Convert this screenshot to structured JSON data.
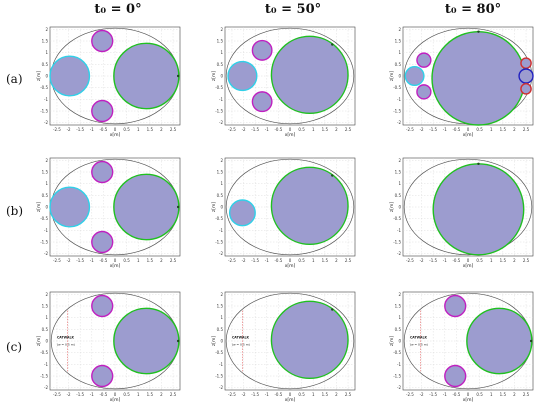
{
  "columns": [
    {
      "label": "t₀ = 0°"
    },
    {
      "label": "t₀ = 50°"
    },
    {
      "label": "t₀ = 80°"
    }
  ],
  "rows": [
    {
      "label": "(a)"
    },
    {
      "label": "(b)"
    },
    {
      "label": "(c)"
    }
  ],
  "axes": {
    "xlabel": "x[m]",
    "ylabel": "z[m]",
    "xlim": [
      -2.8,
      2.8
    ],
    "ylim": [
      -2.1,
      2.1
    ],
    "xticks": [
      "-2.5",
      "-2",
      "-1.5",
      "-1",
      "-0.5",
      "0",
      "0.5",
      "1",
      "1.5",
      "2",
      "2.5"
    ],
    "xtick_values": [
      -2.5,
      -2,
      -1.5,
      -1,
      -0.5,
      0,
      0.5,
      1,
      1.5,
      2,
      2.5
    ],
    "yticks": [
      "2",
      "1.5",
      "1",
      "0.5",
      "0",
      "-0.5",
      "-1",
      "-1.5",
      "-2"
    ],
    "ytick_values": [
      2,
      1.5,
      1,
      0.5,
      0,
      -0.5,
      -1,
      -1.5,
      -2
    ],
    "grid": "dashed"
  },
  "colors": {
    "fill": "#9c9ccf",
    "green": "#20c020",
    "cyan": "#30d0e8",
    "magenta": "#c020c0",
    "red": "#d03030",
    "blue": "#2020c0",
    "ellipse": "#555555",
    "catwalk": "#e06060"
  },
  "catwalk_label": "CATWALK",
  "catwalk_sub": "(w = 0.5 m)",
  "catwalk_x": -2.05,
  "ellipse": {
    "a": 2.75,
    "b": 2.05
  },
  "panels": [
    {
      "circles": [
        {
          "cx": -1.95,
          "cz": 0,
          "r": 0.85,
          "color": "cyan"
        },
        {
          "cx": -0.55,
          "cz": 1.5,
          "r": 0.45,
          "color": "magenta"
        },
        {
          "cx": -0.55,
          "cz": -1.5,
          "r": 0.45,
          "color": "magenta"
        },
        {
          "cx": 1.35,
          "cz": 0,
          "r": 1.4,
          "color": "green"
        }
      ],
      "dots": [
        {
          "x": 2.72,
          "z": 0
        }
      ],
      "catwalk": false
    },
    {
      "circles": [
        {
          "cx": -2.05,
          "cz": 0,
          "r": 0.62,
          "color": "cyan"
        },
        {
          "cx": -1.2,
          "cz": 1.1,
          "r": 0.42,
          "color": "magenta"
        },
        {
          "cx": -1.2,
          "cz": -1.1,
          "r": 0.42,
          "color": "magenta"
        },
        {
          "cx": 0.85,
          "cz": 0.05,
          "r": 1.65,
          "color": "green"
        }
      ],
      "dots": [
        {
          "x": 1.82,
          "z": 1.35
        }
      ],
      "catwalk": false
    },
    {
      "circles": [
        {
          "cx": -2.3,
          "cz": 0,
          "r": 0.4,
          "color": "cyan"
        },
        {
          "cx": -1.9,
          "cz": 0.68,
          "r": 0.3,
          "color": "magenta"
        },
        {
          "cx": -1.9,
          "cz": -0.68,
          "r": 0.3,
          "color": "magenta"
        },
        {
          "cx": 0.45,
          "cz": -0.1,
          "r": 2.0,
          "color": "green"
        },
        {
          "cx": 2.5,
          "cz": 0.55,
          "r": 0.22,
          "color": "red"
        },
        {
          "cx": 2.5,
          "cz": 0,
          "r": 0.3,
          "color": "blue"
        },
        {
          "cx": 2.5,
          "cz": -0.55,
          "r": 0.22,
          "color": "red"
        }
      ],
      "dots": [
        {
          "x": 0.45,
          "z": 1.9
        }
      ],
      "catwalk": false
    },
    {
      "circles": [
        {
          "cx": -1.95,
          "cz": 0,
          "r": 0.85,
          "color": "cyan"
        },
        {
          "cx": -0.55,
          "cz": 1.5,
          "r": 0.45,
          "color": "magenta"
        },
        {
          "cx": -0.55,
          "cz": -1.5,
          "r": 0.45,
          "color": "magenta"
        },
        {
          "cx": 1.35,
          "cz": 0,
          "r": 1.4,
          "color": "green"
        }
      ],
      "dots": [
        {
          "x": 2.72,
          "z": 0
        }
      ],
      "catwalk": false
    },
    {
      "circles": [
        {
          "cx": -2.05,
          "cz": -0.25,
          "r": 0.55,
          "color": "cyan"
        },
        {
          "cx": 0.85,
          "cz": 0.05,
          "r": 1.65,
          "color": "green"
        }
      ],
      "dots": [
        {
          "x": 1.82,
          "z": 1.35
        }
      ],
      "catwalk": false
    },
    {
      "circles": [
        {
          "cx": 0.45,
          "cz": -0.1,
          "r": 1.95,
          "color": "green"
        }
      ],
      "dots": [
        {
          "x": 0.45,
          "z": 1.85
        }
      ],
      "catwalk": false
    },
    {
      "circles": [
        {
          "cx": -0.55,
          "cz": 1.5,
          "r": 0.45,
          "color": "magenta"
        },
        {
          "cx": -0.55,
          "cz": -1.5,
          "r": 0.45,
          "color": "magenta"
        },
        {
          "cx": 1.35,
          "cz": 0,
          "r": 1.4,
          "color": "green"
        }
      ],
      "dots": [
        {
          "x": 2.72,
          "z": 0
        }
      ],
      "catwalk": true
    },
    {
      "circles": [
        {
          "cx": 0.85,
          "cz": 0.05,
          "r": 1.65,
          "color": "green"
        }
      ],
      "dots": [
        {
          "x": 1.82,
          "z": 1.35
        }
      ],
      "catwalk": true
    },
    {
      "circles": [
        {
          "cx": -0.55,
          "cz": 1.5,
          "r": 0.45,
          "color": "magenta"
        },
        {
          "cx": -0.55,
          "cz": -1.5,
          "r": 0.45,
          "color": "magenta"
        },
        {
          "cx": 1.35,
          "cz": 0,
          "r": 1.4,
          "color": "green"
        }
      ],
      "dots": [
        {
          "x": 2.72,
          "z": 0
        }
      ],
      "catwalk": true
    }
  ]
}
